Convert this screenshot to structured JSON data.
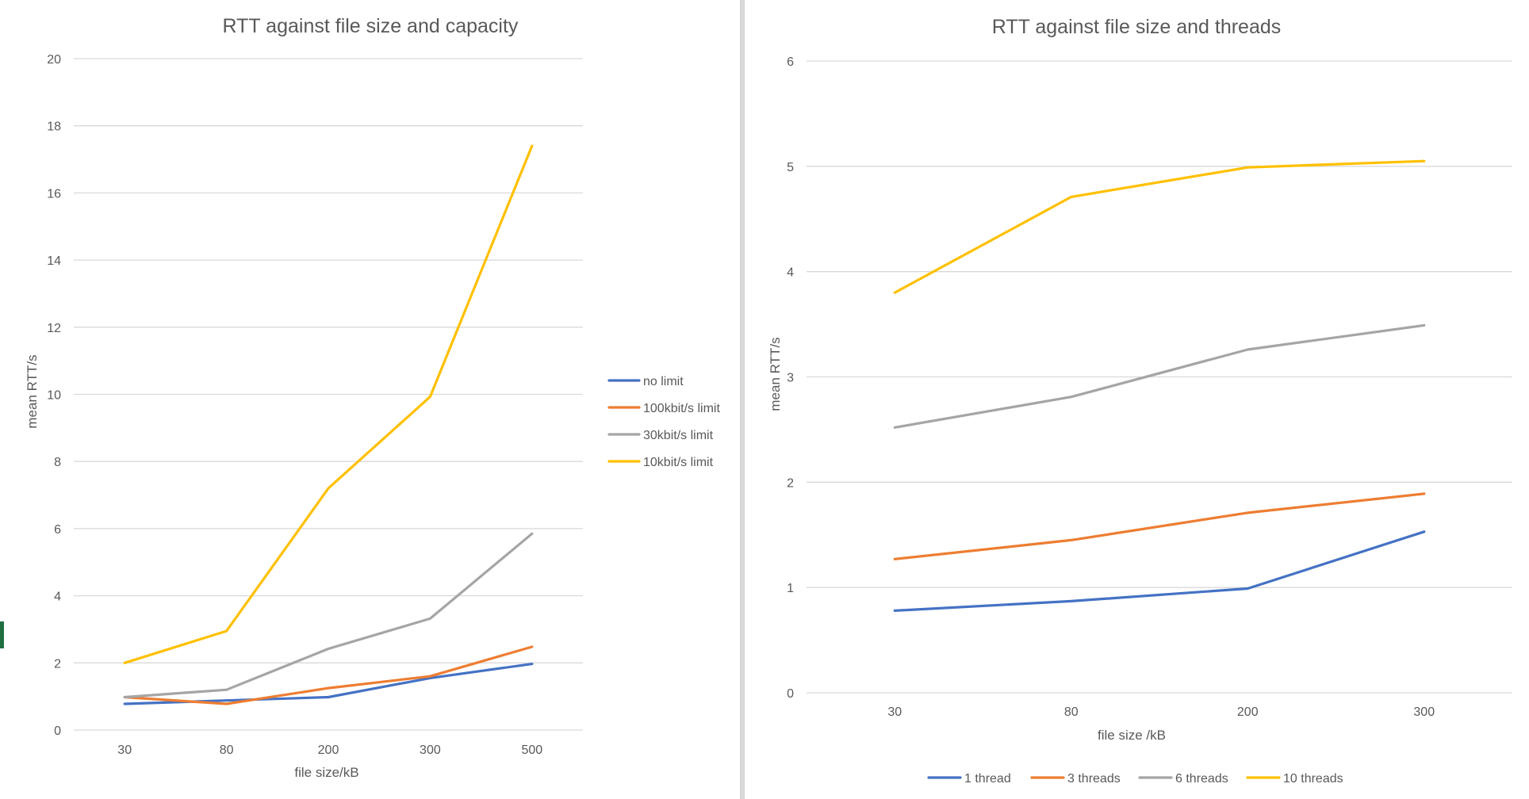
{
  "chart_data": [
    {
      "type": "line",
      "title": "RTT against file size and capacity",
      "xlabel": "file size/kB",
      "ylabel": "mean RTT/s",
      "categories": [
        "30",
        "80",
        "200",
        "300",
        "500"
      ],
      "ylim": [
        0,
        20
      ],
      "yticks": [
        "0",
        "2",
        "4",
        "6",
        "8",
        "10",
        "12",
        "14",
        "16",
        "18",
        "20"
      ],
      "grid": true,
      "legend_position": "right",
      "series": [
        {
          "name": "no limit",
          "color": "#4472c4",
          "values": [
            0.78,
            0.88,
            0.98,
            1.55,
            1.97
          ]
        },
        {
          "name": "100kbit/s limit",
          "color": "#ed7d31",
          "values": [
            0.98,
            0.78,
            1.25,
            1.6,
            2.48
          ]
        },
        {
          "name": "30kbit/s limit",
          "color": "#a5a5a5",
          "values": [
            0.98,
            1.2,
            2.42,
            3.32,
            5.85
          ]
        },
        {
          "name": "10kbit/s limit",
          "color": "#ffc000",
          "values": [
            2.0,
            2.95,
            7.2,
            9.93,
            17.4
          ]
        }
      ]
    },
    {
      "type": "line",
      "title": "RTT against file size and threads",
      "xlabel": "file size /kB",
      "ylabel": "mean RTT/s",
      "categories": [
        "30",
        "80",
        "200",
        "300"
      ],
      "ylim": [
        0,
        6
      ],
      "yticks": [
        "0",
        "1",
        "2",
        "3",
        "4",
        "5",
        "6"
      ],
      "grid": true,
      "legend_position": "bottom",
      "series": [
        {
          "name": "1 thread",
          "color": "#4472c4",
          "values": [
            0.78,
            0.87,
            0.99,
            1.53
          ]
        },
        {
          "name": "3 threads",
          "color": "#ed7d31",
          "values": [
            1.27,
            1.45,
            1.71,
            1.89
          ]
        },
        {
          "name": "6 threads",
          "color": "#a5a5a5",
          "values": [
            2.52,
            2.81,
            3.26,
            3.49
          ]
        },
        {
          "name": "10 threads",
          "color": "#ffc000",
          "values": [
            3.8,
            4.71,
            4.99,
            5.05
          ]
        }
      ]
    }
  ]
}
